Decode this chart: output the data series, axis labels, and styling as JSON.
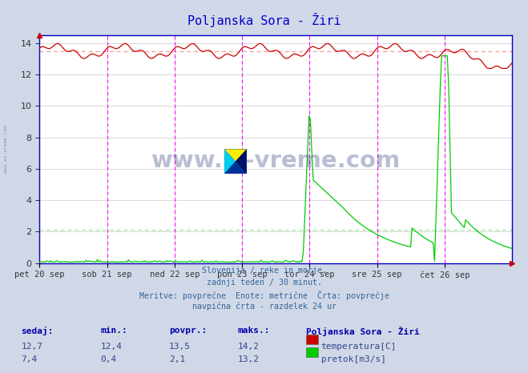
{
  "title": "Poljanska Sora - Žiri",
  "title_color": "#0000cc",
  "bg_color": "#d0d8e8",
  "plot_bg_color": "#ffffff",
  "grid_color": "#c8c8c8",
  "x_labels": [
    "pet 20 sep",
    "sob 21 sep",
    "ned 22 sep",
    "pon 23 sep",
    "tor 24 sep",
    "sre 25 sep",
    "čet 26 sep"
  ],
  "n_points": 336,
  "temp_color": "#cc0000",
  "flow_color": "#00cc00",
  "avg_temp_color": "#ff9999",
  "avg_flow_color": "#99ee99",
  "vline_color": "#ff00ff",
  "border_color": "#0000bb",
  "temp_min": 12.4,
  "temp_max": 14.2,
  "temp_avg": 13.5,
  "flow_min": 0.4,
  "flow_max": 13.2,
  "flow_avg": 2.1,
  "temp_current": 12.7,
  "flow_current": 7.4,
  "footer_line1": "Slovenija / reke in morje.",
  "footer_line2": "zadnji teden / 30 minut.",
  "footer_line3": "Meritve: povprečne  Enote: metrične  Črta: povprečje",
  "footer_line4": "navpična črta - razdelek 24 ur",
  "legend_title": "Poljanska Sora - Žiri",
  "legend_temp": "temperatura[C]",
  "legend_flow": "pretok[m3/s]",
  "watermark": "www.si-vreme.com",
  "ylim_min": 0,
  "ylim_max": 14.5,
  "y_ticks": [
    0,
    2,
    4,
    6,
    8,
    10,
    12,
    14
  ],
  "sidebar_text": "www.si-vreme.com"
}
